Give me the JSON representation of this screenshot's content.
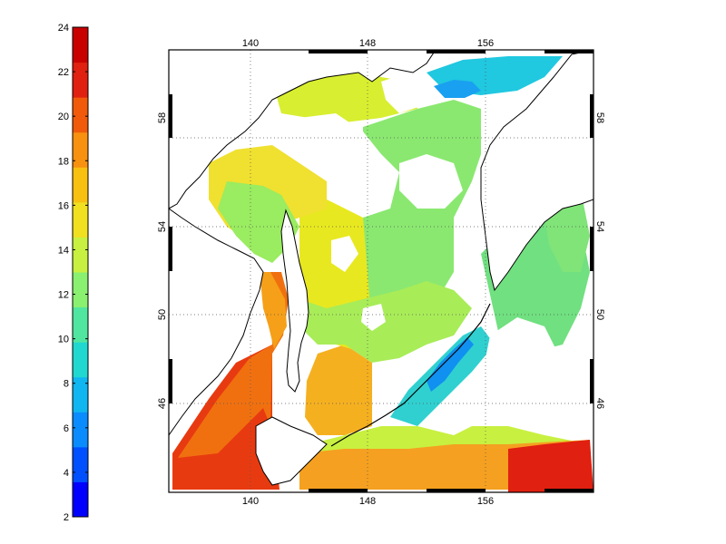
{
  "colorbar": {
    "min": 2,
    "max": 24,
    "ticks": [
      "2",
      "4",
      "6",
      "8",
      "10",
      "12",
      "14",
      "16",
      "18",
      "20",
      "22",
      "24"
    ],
    "colors": [
      "#0000ff",
      "#0050ff",
      "#0a8cff",
      "#10b6f0",
      "#20d8d0",
      "#50e6a0",
      "#8af070",
      "#c8f040",
      "#f0e020",
      "#f8c010",
      "#f89010",
      "#f05a0a",
      "#e02010",
      "#c80000"
    ]
  },
  "map": {
    "top_lon_ticks": [
      "140",
      "148",
      "156"
    ],
    "bottom_lon_ticks": [
      "140",
      "148",
      "156"
    ],
    "left_lat_ticks": [
      "46",
      "50",
      "54",
      "58"
    ],
    "right_lat_ticks": [
      "46",
      "50",
      "54",
      "58"
    ],
    "land_color": "#ffffff",
    "coast_color": "#000000"
  }
}
